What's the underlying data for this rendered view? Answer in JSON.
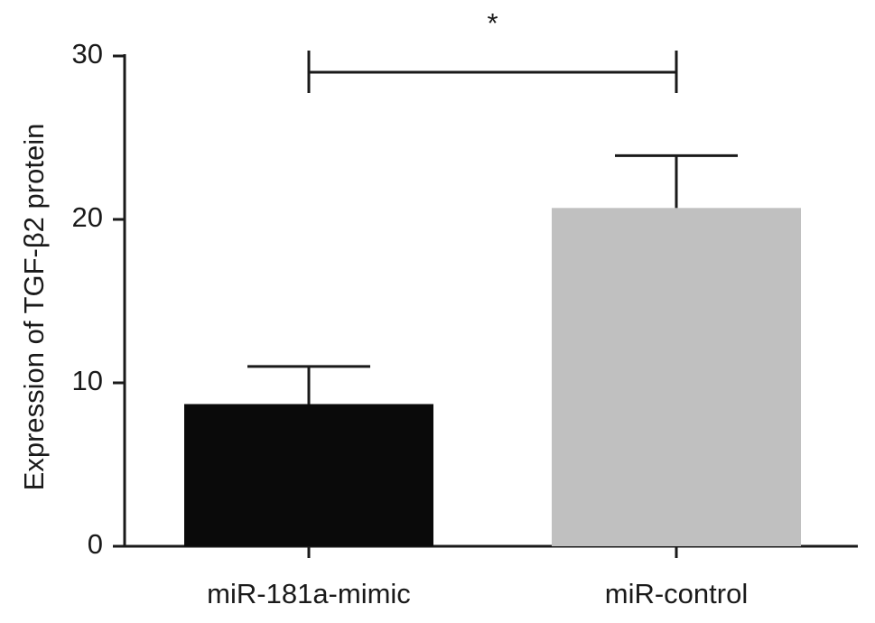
{
  "chart_data": {
    "type": "bar",
    "y_label": "Expression of TGF-β2 protein",
    "categories": [
      "miR-181a-mimic",
      "miR-control"
    ],
    "values": [
      8.7,
      20.7
    ],
    "errors": [
      2.3,
      3.2
    ],
    "colors": [
      "#0a0a0a",
      "#c0c0c0"
    ],
    "ylim": [
      0,
      30
    ],
    "yticks": [
      0,
      10,
      20,
      30
    ],
    "annotation": "*"
  }
}
